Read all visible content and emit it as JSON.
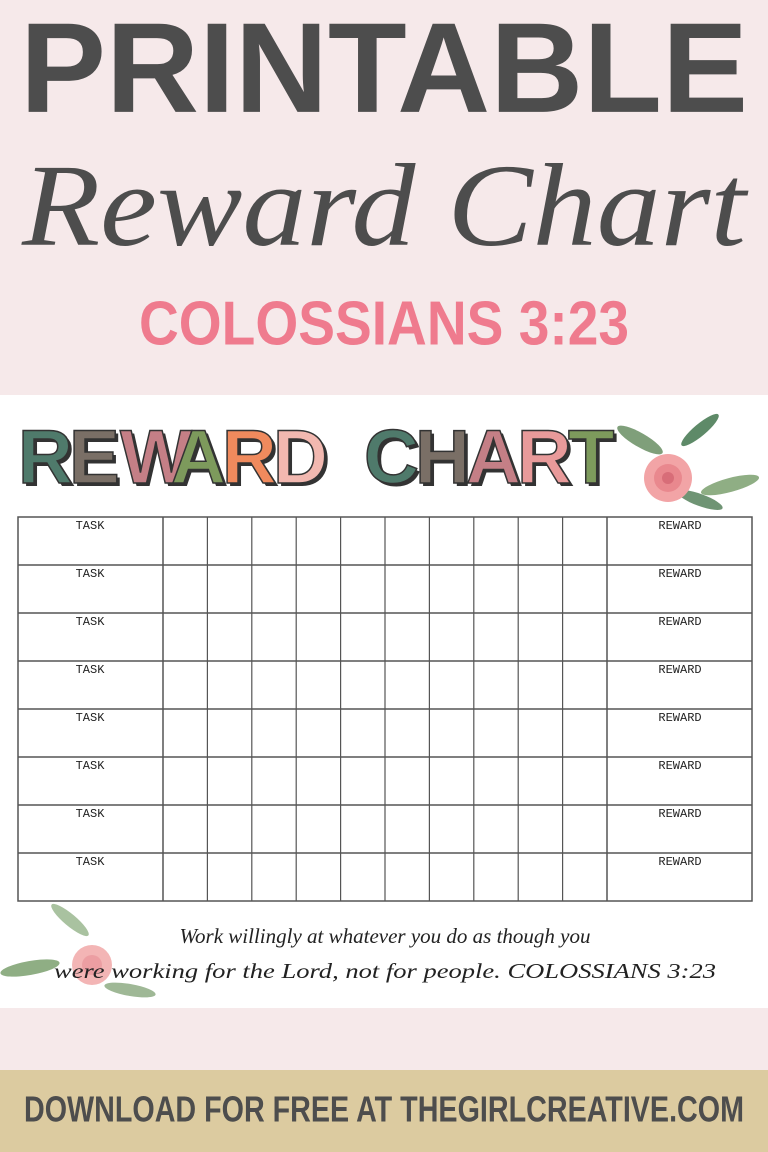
{
  "header": {
    "title": "PRINTABLE",
    "subtitle": "Reward Chart",
    "verse_ref": "COLOSSIANS 3:23"
  },
  "chart_sheet": {
    "heading": {
      "words": [
        [
          "R",
          "E",
          "W",
          "A",
          "R",
          "D"
        ],
        [
          "C",
          "H",
          "A",
          "R",
          "T"
        ]
      ],
      "colors": [
        [
          "#4f7a6b",
          "#7a6f66",
          "#c47f86",
          "#7d9a5c",
          "#f08a5d",
          "#f2b8b0"
        ],
        [
          "#4f7a6b",
          "#7a6f66",
          "#c47f86",
          "#e89a9a",
          "#7d9a5c"
        ]
      ]
    },
    "table": {
      "rows": [
        {
          "task": "TASK",
          "reward": "REWARD"
        },
        {
          "task": "TASK",
          "reward": "REWARD"
        },
        {
          "task": "TASK",
          "reward": "REWARD"
        },
        {
          "task": "TASK",
          "reward": "REWARD"
        },
        {
          "task": "TASK",
          "reward": "REWARD"
        },
        {
          "task": "TASK",
          "reward": "REWARD"
        },
        {
          "task": "TASK",
          "reward": "REWARD"
        },
        {
          "task": "TASK",
          "reward": "REWARD"
        }
      ]
    },
    "verse": [
      "Work willingly at whatever you do as though you",
      "were working for the Lord, not for people. COLOSSIANS 3:23"
    ]
  },
  "footer": {
    "text": "DOWNLOAD FOR FREE AT THEGIRLCREATIVE.COM"
  }
}
